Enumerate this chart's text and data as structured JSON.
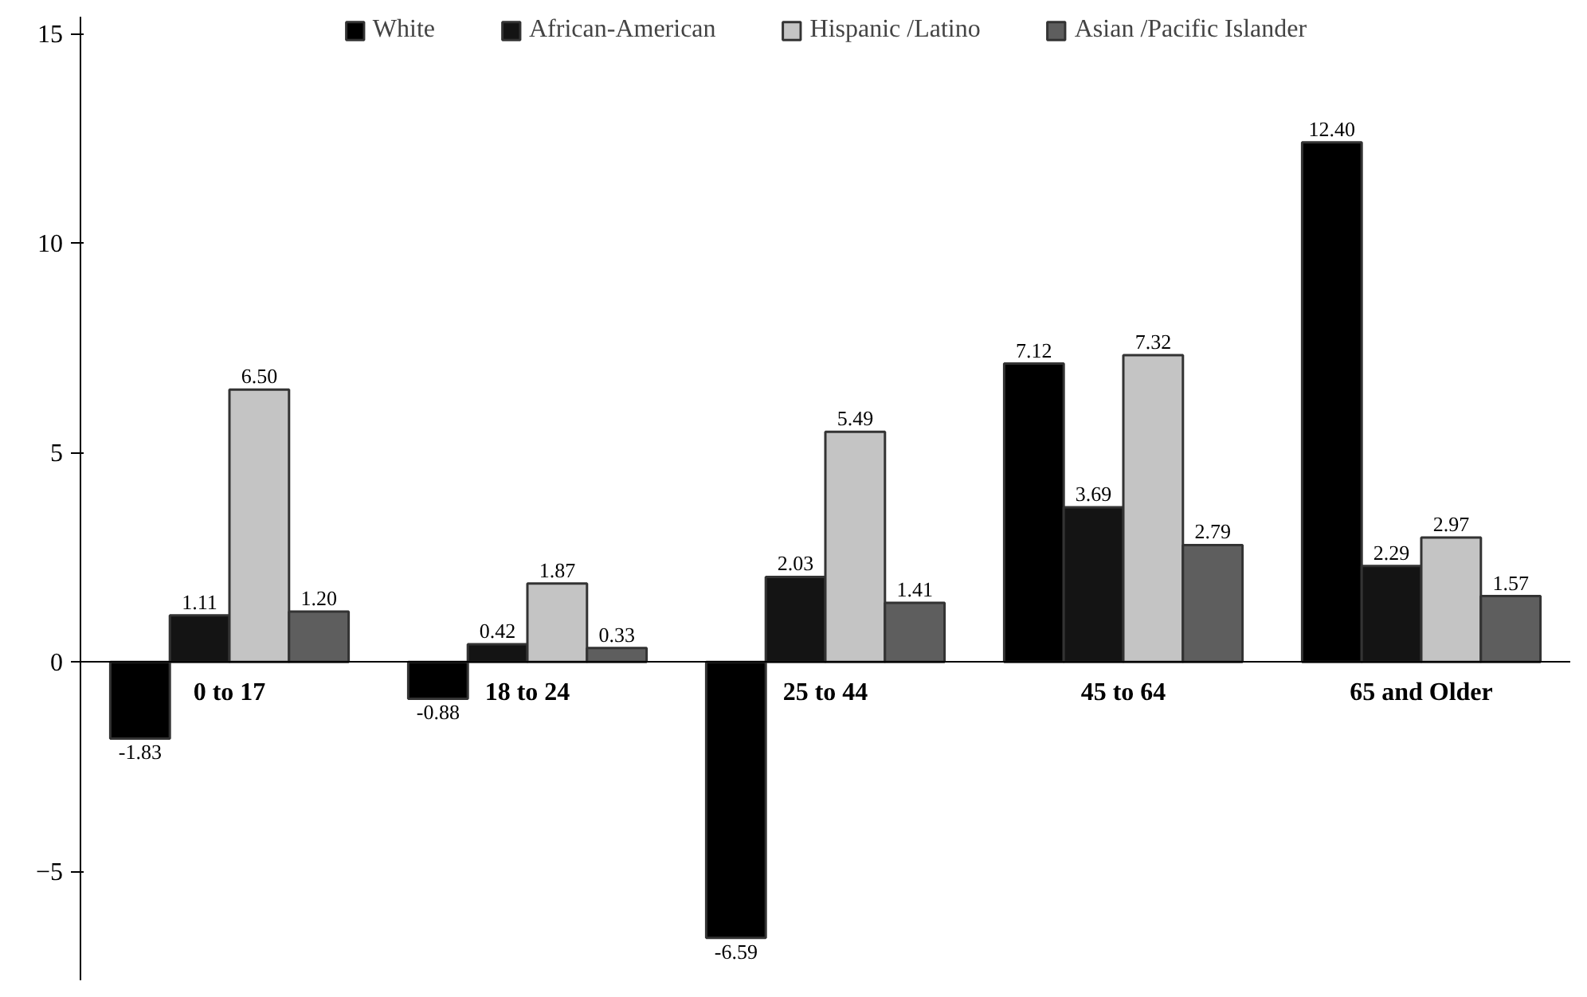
{
  "chart_data": {
    "type": "bar",
    "categories": [
      "0 to 17",
      "18 to 24",
      "25 to 44",
      "45 to 64",
      "65 and Older"
    ],
    "series": [
      {
        "name": "White",
        "color": "#000000",
        "values": [
          -1.83,
          -0.88,
          -6.59,
          7.12,
          12.4
        ]
      },
      {
        "name": "African-American",
        "color": "#141414",
        "values": [
          1.11,
          0.42,
          2.03,
          3.69,
          2.29
        ]
      },
      {
        "name": "Hispanic /Latino",
        "color": "#c4c4c4",
        "values": [
          6.5,
          1.87,
          5.49,
          7.32,
          2.97
        ]
      },
      {
        "name": "Asian /Pacific Islander",
        "color": "#5e5e5e",
        "values": [
          1.2,
          0.33,
          1.41,
          2.79,
          1.57
        ]
      }
    ],
    "value_labels": [
      [
        "-1.83",
        "-0.88",
        "-6.59",
        "7.12",
        "12.40"
      ],
      [
        "1.11",
        "0.42",
        "2.03",
        "3.69",
        "2.29"
      ],
      [
        "6.50",
        "1.87",
        "5.49",
        "7.32",
        "2.97"
      ],
      [
        "1.20",
        "0.33",
        "1.41",
        "2.79",
        "1.57"
      ]
    ],
    "ylim": [
      -7.6,
      15.4
    ],
    "yticks": [
      -5,
      0,
      5,
      10,
      15
    ],
    "grid": false,
    "legend": "top"
  }
}
